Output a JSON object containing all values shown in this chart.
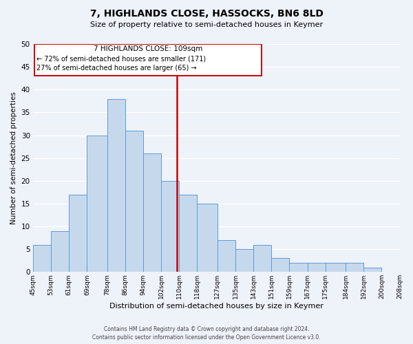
{
  "title": "7, HIGHLANDS CLOSE, HASSOCKS, BN6 8LD",
  "subtitle": "Size of property relative to semi-detached houses in Keymer",
  "xlabel": "Distribution of semi-detached houses by size in Keymer",
  "ylabel": "Number of semi-detached properties",
  "bin_edges": [
    45,
    53,
    61,
    69,
    78,
    86,
    94,
    102,
    110,
    118,
    127,
    135,
    143,
    151,
    159,
    167,
    175,
    184,
    192,
    200,
    208
  ],
  "bin_labels": [
    "45sqm",
    "53sqm",
    "61sqm",
    "69sqm",
    "78sqm",
    "86sqm",
    "94sqm",
    "102sqm",
    "110sqm",
    "118sqm",
    "127sqm",
    "135sqm",
    "143sqm",
    "151sqm",
    "159sqm",
    "167sqm",
    "175sqm",
    "184sqm",
    "192sqm",
    "200sqm",
    "208sqm"
  ],
  "counts": [
    6,
    9,
    17,
    30,
    38,
    31,
    26,
    20,
    17,
    15,
    7,
    5,
    6,
    3,
    2,
    2,
    2,
    2,
    1,
    0
  ],
  "bar_color": "#c6d9ec",
  "bar_edge_color": "#5b9bd5",
  "property_size": 109,
  "vline_color": "#cc0000",
  "annotation_box_color": "#cc0000",
  "annotation_text_line1": "7 HIGHLANDS CLOSE: 109sqm",
  "annotation_text_line2": "← 72% of semi-detached houses are smaller (171)",
  "annotation_text_line3": "27% of semi-detached houses are larger (65) →",
  "ylim": [
    0,
    50
  ],
  "yticks": [
    0,
    5,
    10,
    15,
    20,
    25,
    30,
    35,
    40,
    45,
    50
  ],
  "footer_line1": "Contains HM Land Registry data © Crown copyright and database right 2024.",
  "footer_line2": "Contains public sector information licensed under the Open Government Licence v3.0.",
  "background_color": "#eef2f9",
  "grid_color": "#ffffff"
}
